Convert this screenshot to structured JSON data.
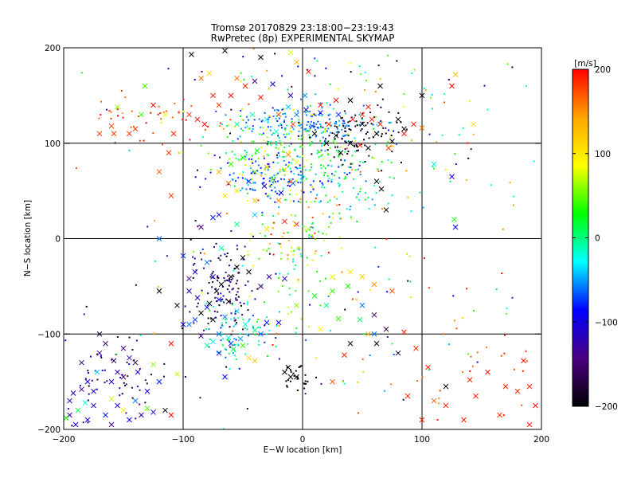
{
  "chart_data": {
    "type": "scatter",
    "title": "Tromsø 20170829 23:18:00−23:19:43",
    "subtitle": "RwPretec (8p) EXPERIMENTAL SKYMAP",
    "xlabel": "E−W location [km]",
    "ylabel": "N−S location [km]",
    "xlim": [
      -200,
      200
    ],
    "ylim": [
      -200,
      200
    ],
    "xticks": [
      -200,
      -100,
      0,
      100,
      200
    ],
    "yticks": [
      -200,
      -100,
      0,
      100,
      200
    ],
    "xtick_labels": [
      "−200",
      "−100",
      "0",
      "100",
      "200"
    ],
    "ytick_labels": [
      "−200",
      "−100",
      "0",
      "100",
      "200"
    ],
    "grid": true,
    "colorbar": {
      "label": "[m/s]",
      "min": -200,
      "max": 200,
      "ticks": [
        -200,
        -100,
        0,
        100,
        200
      ],
      "tick_labels": [
        "−200",
        "−100",
        "0",
        "100",
        "200"
      ],
      "colormap": [
        "#000000",
        "#4b0082",
        "#0000ff",
        "#00ffff",
        "#00ff00",
        "#ffff00",
        "#ffa500",
        "#ff0000"
      ]
    },
    "crosses": [
      [
        -93,
        193,
        -205
      ],
      [
        -65,
        197,
        -205
      ],
      [
        -78,
        173,
        112
      ],
      [
        -85,
        168,
        162
      ],
      [
        -55,
        168,
        162
      ],
      [
        -5,
        185,
        130
      ],
      [
        -95,
        130,
        182
      ],
      [
        -88,
        125,
        200
      ],
      [
        -82,
        120,
        200
      ],
      [
        -115,
        130,
        80
      ],
      [
        -170,
        110,
        180
      ],
      [
        -160,
        118,
        180
      ],
      [
        -158,
        110,
        180
      ],
      [
        -145,
        110,
        182
      ],
      [
        -140,
        115,
        180
      ],
      [
        -155,
        138,
        60
      ],
      [
        -135,
        130,
        40
      ],
      [
        -132,
        160,
        40
      ],
      [
        -125,
        140,
        200
      ],
      [
        -108,
        110,
        190
      ],
      [
        -112,
        90,
        180
      ],
      [
        -120,
        70,
        170
      ],
      [
        -110,
        45,
        180
      ],
      [
        -75,
        150,
        190
      ],
      [
        -60,
        150,
        195
      ],
      [
        -70,
        140,
        180
      ],
      [
        -48,
        160,
        190
      ],
      [
        -35,
        148,
        192
      ],
      [
        -20,
        130,
        175
      ],
      [
        -8,
        120,
        180
      ],
      [
        5,
        175,
        188
      ],
      [
        15,
        140,
        190
      ],
      [
        28,
        145,
        195
      ],
      [
        22,
        120,
        190
      ],
      [
        42,
        125,
        195
      ],
      [
        50,
        130,
        190
      ],
      [
        58,
        125,
        190
      ],
      [
        65,
        120,
        190
      ],
      [
        55,
        138,
        190
      ],
      [
        48,
        98,
        190
      ],
      [
        72,
        95,
        180
      ],
      [
        85,
        110,
        195
      ],
      [
        93,
        120,
        195
      ],
      [
        100,
        116,
        160
      ],
      [
        128,
        172,
        130
      ],
      [
        125,
        160,
        200
      ],
      [
        100,
        150,
        -205
      ],
      [
        65,
        160,
        -205
      ],
      [
        40,
        145,
        -205
      ],
      [
        50,
        120,
        -205
      ],
      [
        40,
        100,
        -205
      ],
      [
        55,
        95,
        -205
      ],
      [
        62,
        110,
        -205
      ],
      [
        75,
        102,
        -205
      ],
      [
        85,
        115,
        -205
      ],
      [
        80,
        125,
        -205
      ],
      [
        10,
        110,
        -205
      ],
      [
        20,
        100,
        -205
      ],
      [
        32,
        90,
        -205
      ],
      [
        28,
        108,
        -205
      ],
      [
        -35,
        190,
        -205
      ],
      [
        -10,
        195,
        80
      ],
      [
        -40,
        165,
        -140
      ],
      [
        -25,
        162,
        -100
      ],
      [
        -10,
        150,
        -120
      ],
      [
        3,
        135,
        -110
      ],
      [
        15,
        132,
        -95
      ],
      [
        30,
        130,
        -80
      ],
      [
        8,
        118,
        -70
      ],
      [
        -5,
        130,
        -60
      ],
      [
        2,
        150,
        -50
      ],
      [
        -12,
        138,
        -40
      ],
      [
        -30,
        125,
        -30
      ],
      [
        -22,
        112,
        -20
      ],
      [
        -42,
        130,
        -10
      ],
      [
        -55,
        120,
        0
      ],
      [
        -28,
        100,
        10
      ],
      [
        -38,
        92,
        20
      ],
      [
        -50,
        85,
        30
      ],
      [
        -60,
        78,
        40
      ],
      [
        -40,
        70,
        50
      ],
      [
        -25,
        62,
        60
      ],
      [
        -15,
        72,
        70
      ],
      [
        -5,
        80,
        80
      ],
      [
        -8,
        58,
        -70
      ],
      [
        -18,
        48,
        -90
      ],
      [
        -32,
        55,
        -110
      ],
      [
        -45,
        60,
        -80
      ],
      [
        -55,
        50,
        100
      ],
      [
        -65,
        45,
        110
      ],
      [
        -20,
        40,
        150
      ],
      [
        -10,
        60,
        160
      ],
      [
        -70,
        70,
        130
      ],
      [
        -62,
        58,
        170
      ],
      [
        -40,
        40,
        120
      ],
      [
        -30,
        75,
        140
      ],
      [
        -12,
        88,
        150
      ],
      [
        62,
        60,
        -205
      ],
      [
        66,
        52,
        -205
      ],
      [
        70,
        30,
        -205
      ],
      [
        -70,
        25,
        -110
      ],
      [
        -75,
        22,
        -80
      ],
      [
        -85,
        12,
        -140
      ],
      [
        -40,
        25,
        -40
      ],
      [
        -55,
        15,
        0
      ],
      [
        -15,
        18,
        190
      ],
      [
        -5,
        15,
        180
      ],
      [
        -30,
        10,
        100
      ],
      [
        127,
        20,
        30
      ],
      [
        128,
        12,
        -90
      ],
      [
        125,
        65,
        -100
      ],
      [
        110,
        78,
        -20
      ],
      [
        143,
        120,
        110
      ],
      [
        -120,
        0,
        -60
      ],
      [
        -45,
        -35,
        -205
      ],
      [
        -60,
        -40,
        -205
      ],
      [
        -68,
        -48,
        -205
      ],
      [
        -72,
        -55,
        -205
      ],
      [
        -78,
        -68,
        -205
      ],
      [
        -85,
        -78,
        -205
      ],
      [
        -75,
        -85,
        -205
      ],
      [
        -62,
        -66,
        -205
      ],
      [
        -55,
        -30,
        -205
      ],
      [
        -50,
        -20,
        -205
      ],
      [
        -95,
        -55,
        -120
      ],
      [
        -88,
        -62,
        -100
      ],
      [
        -80,
        -72,
        -80
      ],
      [
        -70,
        -64,
        -100
      ],
      [
        -65,
        -82,
        -60
      ],
      [
        -55,
        -76,
        -40
      ],
      [
        -48,
        -90,
        -20
      ],
      [
        -40,
        -96,
        0
      ],
      [
        -35,
        -100,
        -60
      ],
      [
        -30,
        -88,
        -80
      ],
      [
        -20,
        -88,
        -90
      ],
      [
        -90,
        -85,
        -70
      ],
      [
        -95,
        -90,
        -60
      ],
      [
        -100,
        -90,
        -110
      ],
      [
        -95,
        -42,
        -130
      ],
      [
        -75,
        -40,
        -105
      ],
      [
        -35,
        -50,
        -140
      ],
      [
        -28,
        -40,
        -125
      ],
      [
        -15,
        -42,
        -110
      ],
      [
        -5,
        -70,
        60
      ],
      [
        10,
        -60,
        20
      ],
      [
        20,
        -70,
        0
      ],
      [
        25,
        -55,
        40
      ],
      [
        38,
        -50,
        30
      ],
      [
        25,
        -40,
        80
      ],
      [
        40,
        -35,
        100
      ],
      [
        50,
        -40,
        115
      ],
      [
        60,
        -48,
        150
      ],
      [
        75,
        -55,
        170
      ],
      [
        60,
        -80,
        -150
      ],
      [
        50,
        -70,
        -60
      ],
      [
        55,
        -100,
        130
      ],
      [
        15,
        -95,
        90
      ],
      [
        30,
        -84,
        40
      ],
      [
        48,
        -85,
        10
      ],
      [
        60,
        -100,
        -60
      ],
      [
        70,
        -95,
        -160
      ],
      [
        40,
        -110,
        -180
      ],
      [
        62,
        -110,
        -200
      ],
      [
        80,
        -120,
        -180
      ],
      [
        95,
        -115,
        185
      ],
      [
        85,
        -98,
        190
      ],
      [
        35,
        -122,
        190
      ],
      [
        25,
        -150,
        170
      ],
      [
        -10,
        -145,
        -205
      ],
      [
        -15,
        -140,
        -205
      ],
      [
        -12,
        -135,
        -205
      ],
      [
        -5,
        -145,
        -205
      ],
      [
        -70,
        -120,
        -100
      ],
      [
        -60,
        -110,
        -75
      ],
      [
        -52,
        -105,
        -50
      ],
      [
        -75,
        -108,
        -30
      ],
      [
        -80,
        -112,
        -10
      ],
      [
        -65,
        -145,
        -90
      ],
      [
        -45,
        -125,
        110
      ],
      [
        -40,
        -128,
        120
      ],
      [
        -70,
        -100,
        -60
      ],
      [
        -62,
        -104,
        -20
      ],
      [
        -58,
        -116,
        20
      ],
      [
        -50,
        -112,
        40
      ],
      [
        -85,
        -102,
        -140
      ],
      [
        -110,
        -110,
        195
      ],
      [
        -125,
        -132,
        60
      ],
      [
        -105,
        -142,
        70
      ],
      [
        -110,
        -185,
        200
      ],
      [
        -120,
        -55,
        -205
      ],
      [
        -105,
        -70,
        -180
      ],
      [
        -90,
        -35,
        -110
      ],
      [
        -100,
        -18,
        -75
      ],
      [
        -80,
        -25,
        -60
      ],
      [
        -68,
        -10,
        -20
      ],
      [
        -140,
        -130,
        -170
      ],
      [
        -150,
        -145,
        -150
      ],
      [
        -155,
        -140,
        -120
      ],
      [
        -160,
        -150,
        -100
      ],
      [
        -170,
        -120,
        -140
      ],
      [
        -175,
        -160,
        -120
      ],
      [
        -180,
        -150,
        -90
      ],
      [
        -185,
        -158,
        -140
      ],
      [
        -192,
        -162,
        -110
      ],
      [
        -195,
        -185,
        -130
      ],
      [
        -165,
        -185,
        -80
      ],
      [
        -175,
        -175,
        -110
      ],
      [
        -155,
        -175,
        -100
      ],
      [
        -145,
        -190,
        -95
      ],
      [
        -135,
        -185,
        -120
      ],
      [
        -125,
        -182,
        -100
      ],
      [
        -115,
        -180,
        -200
      ],
      [
        -130,
        -178,
        50
      ],
      [
        -160,
        -195,
        -140
      ],
      [
        -190,
        -195,
        -100
      ],
      [
        -180,
        -190,
        -90
      ],
      [
        -195,
        -170,
        -120
      ],
      [
        -185,
        -130,
        -160
      ],
      [
        -170,
        -100,
        -180
      ],
      [
        -165,
        -110,
        -150
      ],
      [
        -150,
        -115,
        -140
      ],
      [
        -158,
        -128,
        -160
      ],
      [
        -145,
        -125,
        -130
      ],
      [
        -138,
        -140,
        -110
      ],
      [
        -130,
        -160,
        -100
      ],
      [
        -120,
        -150,
        -80
      ],
      [
        -140,
        -170,
        -60
      ],
      [
        -172,
        -140,
        -40
      ],
      [
        -182,
        -172,
        -20
      ],
      [
        -188,
        -180,
        10
      ],
      [
        -198,
        -188,
        30
      ],
      [
        -160,
        -168,
        70
      ],
      [
        -150,
        -180,
        100
      ],
      [
        120,
        -155,
        -205
      ],
      [
        105,
        -135,
        190
      ],
      [
        140,
        -148,
        190
      ],
      [
        155,
        -140,
        195
      ],
      [
        170,
        -155,
        190
      ],
      [
        180,
        -160,
        185
      ],
      [
        190,
        -155,
        190
      ],
      [
        185,
        -128,
        195
      ],
      [
        195,
        -175,
        200
      ],
      [
        145,
        -165,
        190
      ],
      [
        165,
        -185,
        180
      ],
      [
        135,
        -190,
        190
      ],
      [
        120,
        -175,
        190
      ],
      [
        110,
        -170,
        170
      ],
      [
        88,
        -165,
        185
      ],
      [
        100,
        -190,
        190
      ],
      [
        190,
        -195,
        190
      ]
    ],
    "dot_clusters": [
      {
        "center": [
          0,
          120
        ],
        "spread": [
          30,
          10
        ],
        "count": 140,
        "vmin": -80,
        "vmax": -40
      },
      {
        "center": [
          -15,
          95
        ],
        "spread": [
          30,
          20
        ],
        "count": 170,
        "vmin": -20,
        "vmax": 100
      },
      {
        "center": [
          -25,
          65
        ],
        "spread": [
          25,
          12
        ],
        "count": 120,
        "vmin": -100,
        "vmax": -40
      },
      {
        "center": [
          25,
          60
        ],
        "spread": [
          28,
          28
        ],
        "count": 120,
        "vmin": -70,
        "vmax": 40
      },
      {
        "center": [
          45,
          110
        ],
        "spread": [
          20,
          15
        ],
        "count": 90,
        "vmin": -205,
        "vmax": -160
      },
      {
        "center": [
          -65,
          -50
        ],
        "spread": [
          15,
          25
        ],
        "count": 120,
        "vmin": -205,
        "vmax": -110
      },
      {
        "center": [
          -55,
          -95
        ],
        "spread": [
          15,
          18
        ],
        "count": 70,
        "vmin": -80,
        "vmax": 20
      },
      {
        "center": [
          -160,
          -150
        ],
        "spread": [
          25,
          25
        ],
        "count": 60,
        "vmin": -200,
        "vmax": -90
      },
      {
        "center": [
          -5,
          -145
        ],
        "spread": [
          6,
          8
        ],
        "count": 25,
        "vmin": -205,
        "vmax": -190
      },
      {
        "center": [
          -10,
          -20
        ],
        "spread": [
          18,
          35
        ],
        "count": 70,
        "vmin": -20,
        "vmax": 100
      },
      {
        "center": [
          0,
          10
        ],
        "spread": [
          25,
          25
        ],
        "count": 60,
        "vmin": 0,
        "vmax": 200
      },
      {
        "center": [
          -120,
          130
        ],
        "spread": [
          30,
          15
        ],
        "count": 40,
        "vmin": 160,
        "vmax": 200
      },
      {
        "center": [
          0,
          140
        ],
        "spread": [
          100,
          50
        ],
        "count": 120,
        "vmin": -200,
        "vmax": 200
      },
      {
        "center": [
          0,
          -80
        ],
        "spread": [
          100,
          60
        ],
        "count": 100,
        "vmin": -200,
        "vmax": 200
      },
      {
        "center": [
          120,
          100
        ],
        "spread": [
          40,
          60
        ],
        "count": 40,
        "vmin": -50,
        "vmax": 200
      },
      {
        "center": [
          150,
          -150
        ],
        "spread": [
          40,
          40
        ],
        "count": 30,
        "vmin": 150,
        "vmax": 200
      }
    ]
  }
}
